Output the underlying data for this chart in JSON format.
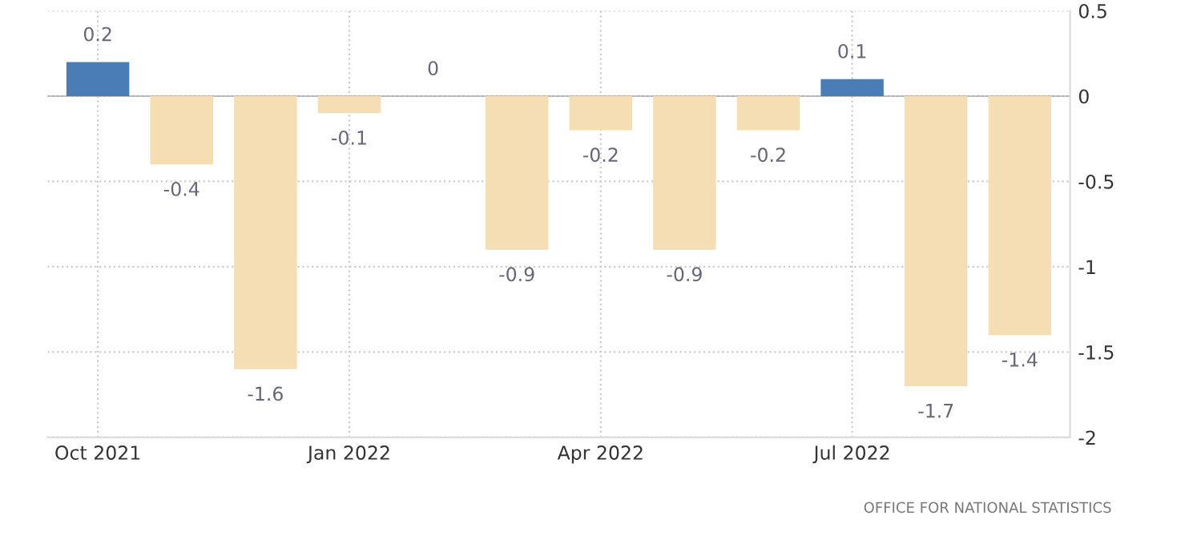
{
  "chart_data": {
    "type": "bar",
    "categories": [
      "Oct 2021",
      null,
      null,
      "Jan 2022",
      null,
      null,
      "Apr 2022",
      null,
      null,
      "Jul 2022",
      null,
      null
    ],
    "values": [
      0.2,
      -0.4,
      -1.6,
      -0.1,
      0,
      -0.9,
      -0.2,
      -0.9,
      -0.2,
      0.1,
      -1.7,
      -1.4
    ],
    "colors": [
      "#4a7db5",
      "#f5deb3",
      "#f5deb3",
      "#f5deb3",
      "#f5deb3",
      "#f5deb3",
      "#f5deb3",
      "#f5deb3",
      "#f5deb3",
      "#4a7db5",
      "#f5deb3",
      "#f5deb3"
    ],
    "data_labels": true,
    "ylim": [
      -2,
      0.5
    ],
    "yticks": [
      0.5,
      0,
      -0.5,
      -1,
      -1.5,
      -2
    ],
    "grid": true,
    "annotations": [
      "OFFICE FOR NATIONAL STATISTICS"
    ]
  }
}
